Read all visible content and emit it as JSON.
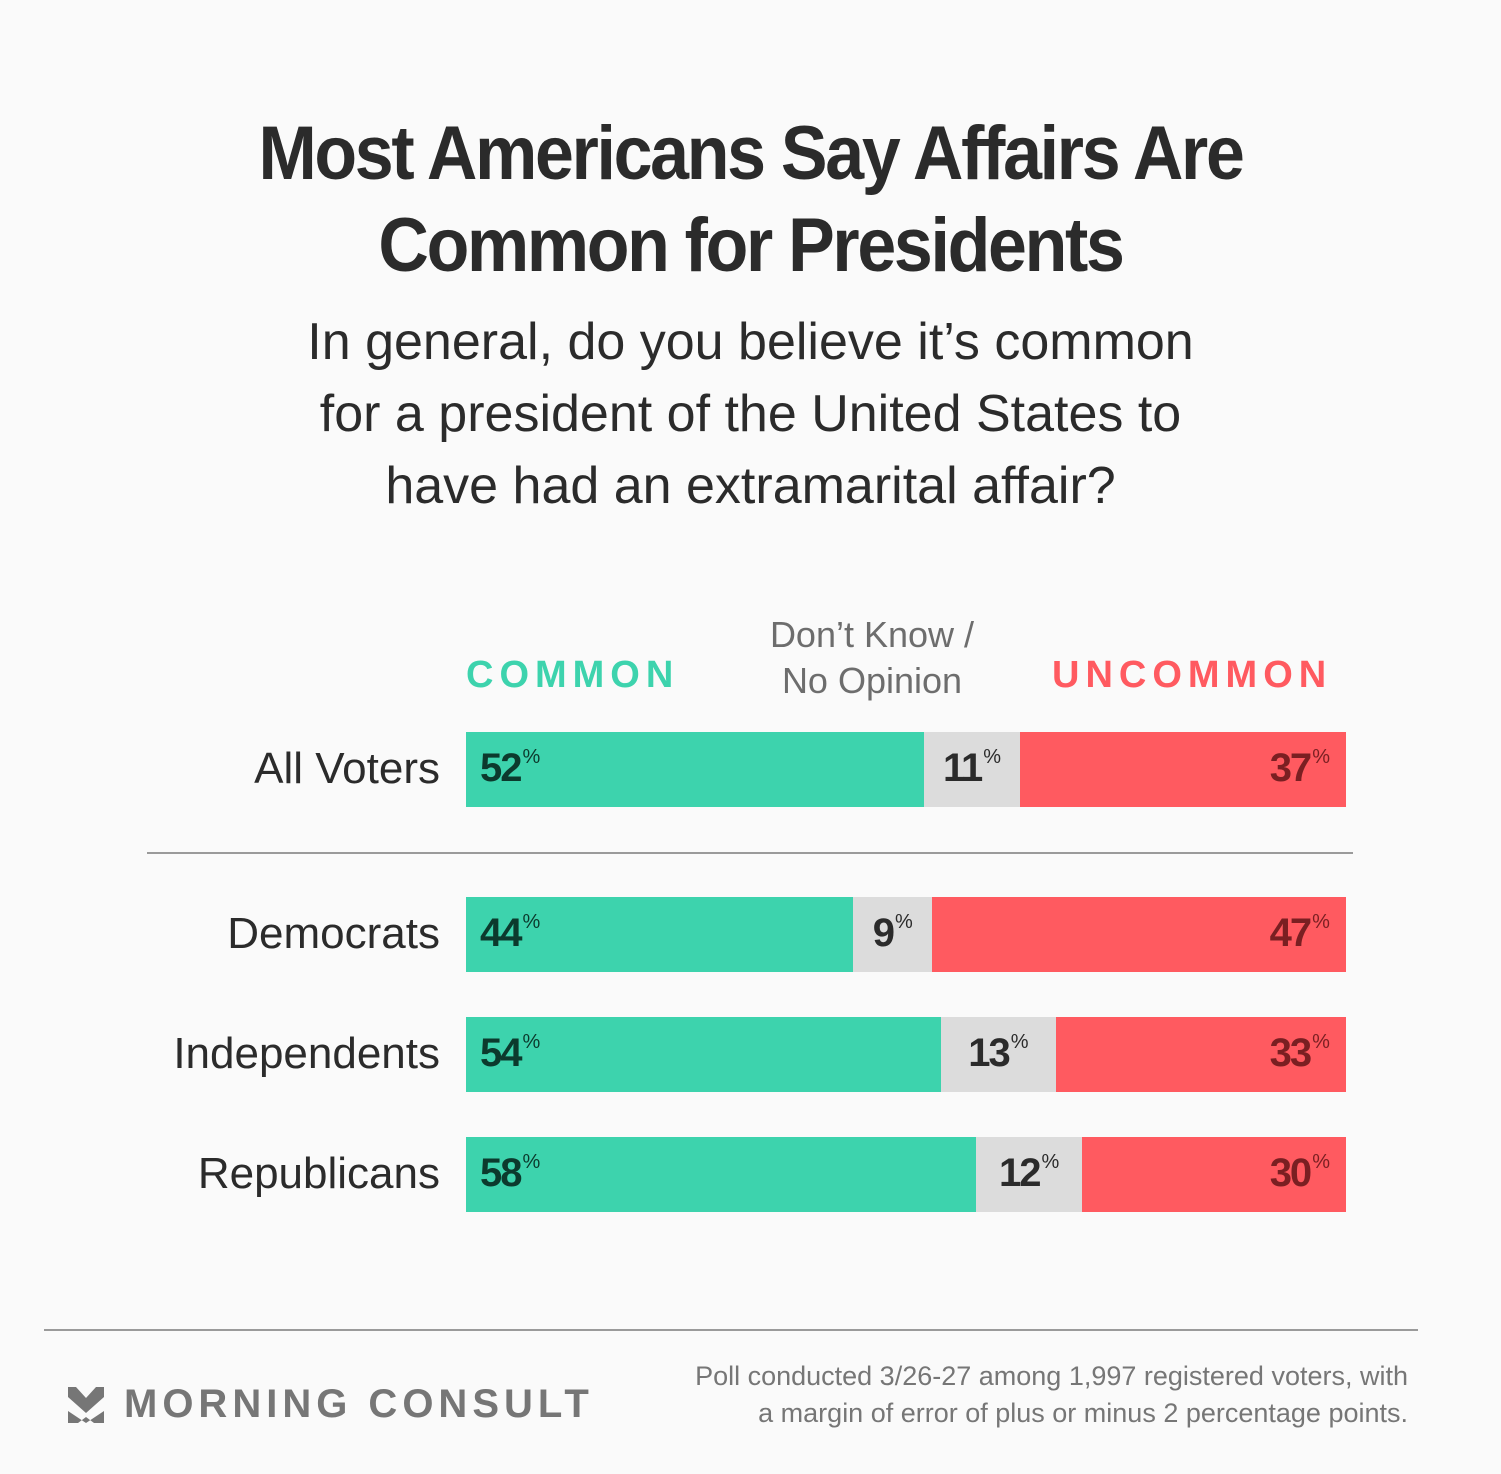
{
  "title_lines": [
    "Most Americans Say Affairs Are",
    "Common for Presidents"
  ],
  "subtitle_lines": [
    "In general, do you believe it’s common",
    "for a president of the United States to",
    "have had an extramarital affair?"
  ],
  "chart_data": {
    "type": "bar",
    "orientation": "horizontal-stacked-100",
    "title": "Most Americans Say Affairs Are Common for Presidents",
    "subtitle": "In general, do you believe it’s common for a president of the United States to have had an extramarital affair?",
    "categories": [
      "All Voters",
      "Democrats",
      "Independents",
      "Republicans"
    ],
    "series": [
      {
        "name": "COMMON",
        "color": "#3dd3ad",
        "values": [
          52,
          44,
          54,
          58
        ]
      },
      {
        "name": "Don’t Know / No Opinion",
        "color": "#dcdcdc",
        "values": [
          11,
          9,
          13,
          12
        ]
      },
      {
        "name": "UNCOMMON",
        "color": "#ff5a60",
        "values": [
          37,
          47,
          33,
          30
        ]
      }
    ],
    "unit": "%",
    "xlim": [
      0,
      100
    ],
    "legend": {
      "common": "COMMON",
      "dk_lines": [
        "Don’t Know /",
        "No Opinion"
      ],
      "uncommon": "UNCOMMON",
      "placement": "top"
    },
    "grid": false
  },
  "footer": {
    "brand": "MORNING CONSULT",
    "note_lines": [
      "Poll conducted 3/26-27 among 1,997 registered voters, with",
      "a margin of error of plus or minus 2 percentage points."
    ]
  }
}
